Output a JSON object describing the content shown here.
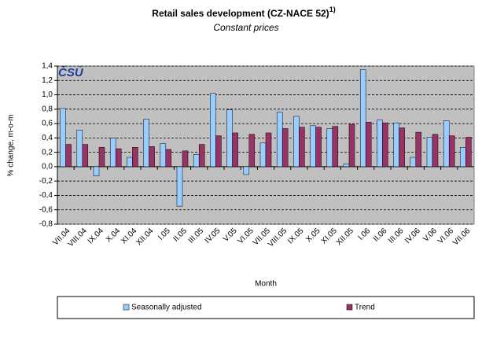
{
  "chart_data": {
    "type": "bar",
    "title": "Retail sales development (CZ-NACE 52)",
    "title_superscript": "1)",
    "subtitle": "Constant prices",
    "logo": "ČSÚ",
    "x_label": "Month",
    "y_label": "% change, m-o-m",
    "categories": [
      "VII.04",
      "VIII.04",
      "IX.04",
      "X.04",
      "XI.04",
      "XII.04",
      "I.05",
      "II.05",
      "III.05",
      "IV.05",
      "V.05",
      "VI.05",
      "VII.05",
      "VIII.05",
      "IX.05",
      "X.05",
      "XI.05",
      "XII.05",
      "I.06",
      "II.06",
      "III.06",
      "IV.06",
      "V.06",
      "VI.06",
      "VII.06"
    ],
    "series": [
      {
        "name": "Seasonally adjusted",
        "color": "#99ccff",
        "values": [
          0.81,
          0.51,
          -0.13,
          0.4,
          0.13,
          0.66,
          0.32,
          -0.55,
          0.17,
          1.02,
          0.79,
          -0.11,
          0.33,
          0.76,
          0.7,
          0.57,
          0.53,
          0.04,
          1.35,
          0.65,
          0.61,
          0.13,
          0.41,
          0.64,
          0.27
        ]
      },
      {
        "name": "Trend",
        "color": "#993366",
        "values": [
          0.31,
          0.31,
          0.27,
          0.25,
          0.27,
          0.28,
          0.24,
          0.22,
          0.31,
          0.43,
          0.47,
          0.45,
          0.47,
          0.53,
          0.55,
          0.55,
          0.56,
          0.59,
          0.62,
          0.61,
          0.54,
          0.48,
          0.45,
          0.43,
          0.41
        ]
      }
    ],
    "ylim": [
      -0.8,
      1.4
    ],
    "yticks": [
      {
        "value": -0.8,
        "label": "-0,8"
      },
      {
        "value": -0.6,
        "label": "-0,6"
      },
      {
        "value": -0.4,
        "label": "-0,4"
      },
      {
        "value": -0.2,
        "label": "-0,2"
      },
      {
        "value": 0,
        "label": "0,0"
      },
      {
        "value": 0.2,
        "label": "0,2"
      },
      {
        "value": 0.4,
        "label": "0,4"
      },
      {
        "value": 0.6,
        "label": "0,6"
      },
      {
        "value": 0.8,
        "label": "0,8"
      },
      {
        "value": 1.0,
        "label": "1,0"
      },
      {
        "value": 1.2,
        "label": "1,2"
      },
      {
        "value": 1.4,
        "label": "1,4"
      }
    ],
    "grid": true,
    "legend": "bottom"
  }
}
